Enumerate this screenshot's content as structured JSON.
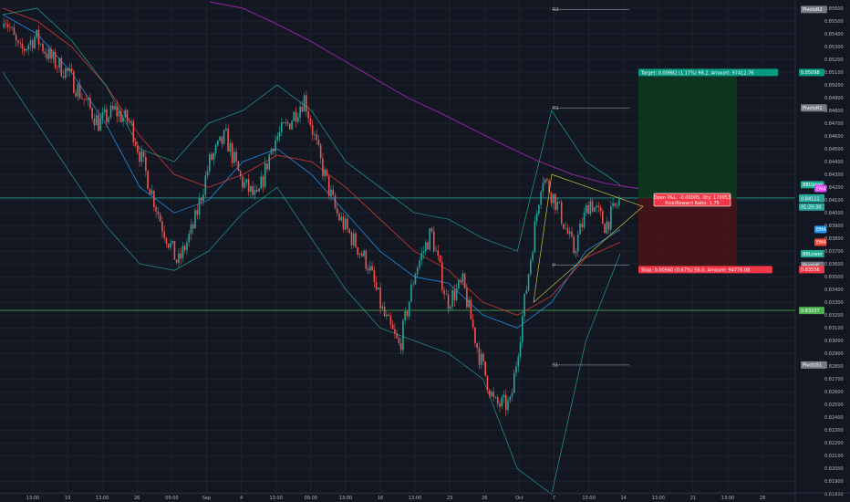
{
  "chart_data": {
    "type": "candlestick",
    "title": "",
    "xlabel": "",
    "ylabel": "",
    "ylim": [
      0.8181,
      0.8565
    ],
    "grid": true,
    "x_ticks": [
      "13:00",
      "19",
      "13:00",
      "26",
      "09:00",
      "Sep",
      "4",
      "13:00",
      "09:00",
      "13:00",
      "16",
      "13:00",
      "23",
      "26",
      "Oct",
      "7",
      "13:00",
      "14",
      "13:00",
      "21",
      "13:00",
      "28"
    ],
    "y_ticks": [
      "0.85600",
      "0.85500",
      "0.85400",
      "0.85300",
      "0.85200",
      "0.85100",
      "0.85000",
      "0.84900",
      "0.84800",
      "0.84700",
      "0.84600",
      "0.84500",
      "0.84400",
      "0.84300",
      "0.84200",
      "0.84100",
      "0.84000",
      "0.83900",
      "0.83800",
      "0.83700",
      "0.83600",
      "0.83500",
      "0.83400",
      "0.83300",
      "0.83200",
      "0.83100",
      "0.83000",
      "0.82900",
      "0.82800",
      "0.82700",
      "0.82600",
      "0.82500",
      "0.82400",
      "0.82300",
      "0.82200",
      "0.82100",
      "0.82000",
      "0.81900",
      "0.81800"
    ],
    "price_tags": [
      {
        "label": "PivotsR2",
        "value": 0.8559,
        "color": "#787b86"
      },
      {
        "label": "0.85098",
        "value": 0.85098,
        "color": "#089981"
      },
      {
        "label": "PivotsR1",
        "value": 0.8482,
        "color": "#787b86"
      },
      {
        "label": "BBUpper",
        "value": 0.8422,
        "color": "#22ab94"
      },
      {
        "label": "EMA",
        "value": 0.8419,
        "color": "#e040fb"
      },
      {
        "label": "0.84116",
        "value": 0.84116,
        "color": "#26a69a"
      },
      {
        "label": "0.84111",
        "value": 0.84111,
        "color": "#26a69a"
      },
      {
        "label": "01:20:30",
        "value": 0.84046,
        "color": "#26a69a"
      },
      {
        "label": "EMA",
        "value": 0.8387,
        "color": "#2196f3"
      },
      {
        "label": "EMA",
        "value": 0.8377,
        "color": "#f44336"
      },
      {
        "label": "BBLower",
        "value": 0.8368,
        "color": "#22ab94"
      },
      {
        "label": "PivotsP",
        "value": 0.8359,
        "color": "#787b86"
      },
      {
        "label": "0.83556",
        "value": 0.83556,
        "color": "#f23645"
      },
      {
        "label": "0.83237",
        "value": 0.83237,
        "color": "#4caf50"
      },
      {
        "label": "PivotsS1",
        "value": 0.8281,
        "color": "#787b86"
      }
    ],
    "pivots": [
      {
        "label": "R2",
        "value": 0.8559
      },
      {
        "label": "R1",
        "value": 0.8482
      },
      {
        "label": "P",
        "value": 0.8359
      },
      {
        "label": "S1",
        "value": 0.8281
      }
    ],
    "position": {
      "entry": 0.84116,
      "target": 0.85098,
      "stop": 0.83556,
      "target_label": "Target: 0.00982 (1.17%) 98.2, Amount: 97412.76",
      "stop_label": "Stop: 0.00560 (0.67%) 56.0, Amount: 94776.08",
      "pnl_label": "Open P&L: -0.00005, Qty: 170953",
      "rr_label": "Risk/Reward Ratio: 1.75"
    },
    "horizontal_lines": [
      {
        "value": 0.84116,
        "color": "#26a69a"
      },
      {
        "value": 0.83237,
        "color": "#4caf50"
      }
    ],
    "colors": {
      "up": "#26a69a",
      "down": "#ef5350",
      "ema_200": "#9c27b0",
      "ema_blue": "#2196f3",
      "ema_red": "#e53935",
      "bollinger": "#22ab94",
      "background": "#131722"
    },
    "series": [
      {
        "name": "Price",
        "ohlc_waypoints": [
          [
            0.8545,
            0.8556
          ],
          [
            0.854,
            0.8525
          ],
          [
            0.8525,
            0.8538
          ],
          [
            0.854,
            0.852
          ],
          [
            0.853,
            0.851
          ],
          [
            0.8505,
            0.849
          ],
          [
            0.849,
            0.847
          ],
          [
            0.847,
            0.848
          ],
          [
            0.8455,
            0.847
          ],
          [
            0.845,
            0.843
          ],
          [
            0.842,
            0.839
          ],
          [
            0.838,
            0.836
          ],
          [
            0.837,
            0.839
          ],
          [
            0.841,
            0.844
          ],
          [
            0.8445,
            0.846
          ],
          [
            0.844,
            0.8425
          ],
          [
            0.843,
            0.841
          ],
          [
            0.844,
            0.8455
          ],
          [
            0.8455,
            0.847
          ],
          [
            0.8475,
            0.849
          ],
          [
            0.8475,
            0.844
          ],
          [
            0.843,
            0.84
          ],
          [
            0.8395,
            0.838
          ],
          [
            0.8385,
            0.836
          ],
          [
            0.835,
            0.832
          ],
          [
            0.83,
            0.8295
          ],
          [
            0.833,
            0.8355
          ],
          [
            0.838,
            0.8385
          ],
          [
            0.836,
            0.833
          ],
          [
            0.834,
            0.8345
          ],
          [
            0.833,
            0.829
          ],
          [
            0.827,
            0.825
          ],
          [
            0.826,
            0.825
          ],
          [
            0.827,
            0.834
          ],
          [
            0.836,
            0.843
          ],
          [
            0.8435,
            0.8405
          ],
          [
            0.839,
            0.837
          ],
          [
            0.8395,
            0.841
          ],
          [
            0.8405,
            0.839
          ],
          [
            0.84,
            0.8412
          ]
        ]
      }
    ],
    "indicators": {
      "ema_200": [
        0.8565,
        0.856,
        0.8548,
        0.8535,
        0.852,
        0.8505,
        0.849,
        0.8478,
        0.8465,
        0.8452,
        0.844,
        0.843,
        0.8423,
        0.8419
      ],
      "ema_blue": [
        0.8555,
        0.854,
        0.851,
        0.847,
        0.842,
        0.84,
        0.841,
        0.844,
        0.845,
        0.843,
        0.84,
        0.837,
        0.835,
        0.8345,
        0.832,
        0.831,
        0.833,
        0.837,
        0.8387
      ],
      "ema_red": [
        0.856,
        0.855,
        0.853,
        0.85,
        0.846,
        0.843,
        0.842,
        0.843,
        0.8445,
        0.844,
        0.842,
        0.8395,
        0.837,
        0.8355,
        0.833,
        0.832,
        0.8335,
        0.8365,
        0.8377
      ],
      "bb_upper": [
        0.8555,
        0.856,
        0.8535,
        0.85,
        0.845,
        0.844,
        0.847,
        0.848,
        0.85,
        0.848,
        0.844,
        0.842,
        0.84,
        0.8395,
        0.838,
        0.837,
        0.848,
        0.844,
        0.8422
      ],
      "bb_lower": [
        0.851,
        0.847,
        0.843,
        0.839,
        0.836,
        0.8355,
        0.837,
        0.84,
        0.842,
        0.838,
        0.834,
        0.831,
        0.83,
        0.829,
        0.827,
        0.82,
        0.818,
        0.83,
        0.8368
      ]
    }
  }
}
